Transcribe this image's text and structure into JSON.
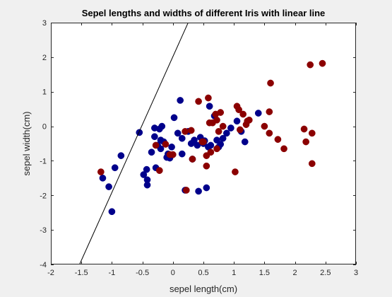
{
  "chart_data": {
    "type": "scatter",
    "title": "Sepel lengths and widths of different Iris with linear line",
    "xlabel": "sepel length(cm)",
    "ylabel": "sepel width(cm)",
    "xlim": [
      -2,
      3
    ],
    "ylim": [
      -4,
      3
    ],
    "xticks": [
      -2,
      -1.5,
      -1,
      -0.5,
      0,
      0.5,
      1,
      1.5,
      2,
      2.5,
      3
    ],
    "yticks": [
      -4,
      -3,
      -2,
      -1,
      0,
      1,
      2,
      3
    ],
    "xtick_labels": [
      "-2",
      "-1.5",
      "-1",
      "-0.5",
      "0",
      "0.5",
      "1",
      "1.5",
      "2",
      "2.5",
      "3"
    ],
    "ytick_labels": [
      "-4",
      "-3",
      "-2",
      "-1",
      "0",
      "1",
      "2",
      "3"
    ],
    "grid": false,
    "line": {
      "points": [
        [
          -1.53,
          -4.0
        ],
        [
          0.25,
          3.0
        ]
      ],
      "color": "#000000"
    },
    "series": [
      {
        "color": "#00008b",
        "points": [
          [
            -1.15,
            -1.5
          ],
          [
            -1.05,
            -1.75
          ],
          [
            -1.0,
            -2.47
          ],
          [
            -0.95,
            -1.2
          ],
          [
            -0.85,
            -0.85
          ],
          [
            -0.55,
            -0.18
          ],
          [
            -0.48,
            -1.4
          ],
          [
            -0.43,
            -1.25
          ],
          [
            -0.42,
            -1.55
          ],
          [
            -0.42,
            -1.7
          ],
          [
            -0.35,
            -0.75
          ],
          [
            -0.3,
            -0.3
          ],
          [
            -0.3,
            -0.05
          ],
          [
            -0.28,
            -1.2
          ],
          [
            -0.25,
            -0.55
          ],
          [
            -0.22,
            -0.08
          ],
          [
            -0.2,
            -0.65
          ],
          [
            -0.2,
            -0.4
          ],
          [
            -0.18,
            0.0
          ],
          [
            -0.15,
            -0.45
          ],
          [
            -0.1,
            -0.9
          ],
          [
            -0.08,
            -0.8
          ],
          [
            -0.05,
            -0.92
          ],
          [
            -0.02,
            -0.6
          ],
          [
            0.02,
            0.25
          ],
          [
            0.08,
            -0.2
          ],
          [
            0.12,
            0.75
          ],
          [
            0.15,
            -0.35
          ],
          [
            0.15,
            -0.8
          ],
          [
            0.2,
            -1.85
          ],
          [
            0.25,
            -0.15
          ],
          [
            0.3,
            -0.5
          ],
          [
            0.32,
            -0.95
          ],
          [
            0.35,
            -0.4
          ],
          [
            0.4,
            -0.55
          ],
          [
            0.42,
            -1.88
          ],
          [
            0.45,
            -0.32
          ],
          [
            0.5,
            -0.5
          ],
          [
            0.52,
            -0.42
          ],
          [
            0.55,
            -1.78
          ],
          [
            0.58,
            -0.6
          ],
          [
            0.6,
            0.58
          ],
          [
            0.62,
            -0.55
          ],
          [
            0.68,
            0.3
          ],
          [
            0.72,
            -0.4
          ],
          [
            0.75,
            -0.6
          ],
          [
            0.78,
            -0.52
          ],
          [
            0.82,
            -0.35
          ],
          [
            0.88,
            -0.2
          ],
          [
            0.95,
            -0.05
          ],
          [
            1.05,
            0.15
          ],
          [
            1.12,
            -0.15
          ],
          [
            1.18,
            -0.45
          ],
          [
            1.4,
            0.38
          ]
        ]
      },
      {
        "color": "#8b0000",
        "points": [
          [
            -1.18,
            -1.32
          ],
          [
            -0.28,
            -0.55
          ],
          [
            -0.22,
            -1.28
          ],
          [
            -0.12,
            -0.52
          ],
          [
            -0.05,
            -0.82
          ],
          [
            0.0,
            -0.82
          ],
          [
            0.2,
            -0.15
          ],
          [
            0.22,
            -1.85
          ],
          [
            0.3,
            -0.12
          ],
          [
            0.32,
            -0.95
          ],
          [
            0.42,
            0.72
          ],
          [
            0.48,
            -0.45
          ],
          [
            0.5,
            -0.45
          ],
          [
            0.55,
            -0.85
          ],
          [
            0.55,
            -1.15
          ],
          [
            0.58,
            0.82
          ],
          [
            0.6,
            0.1
          ],
          [
            0.62,
            -0.75
          ],
          [
            0.65,
            0.1
          ],
          [
            0.7,
            0.35
          ],
          [
            0.72,
            0.18
          ],
          [
            0.72,
            -0.65
          ],
          [
            0.75,
            -0.15
          ],
          [
            0.78,
            0.4
          ],
          [
            0.82,
            0.0
          ],
          [
            1.02,
            -1.32
          ],
          [
            1.05,
            0.58
          ],
          [
            1.08,
            0.48
          ],
          [
            1.1,
            -0.1
          ],
          [
            1.15,
            0.35
          ],
          [
            1.2,
            0.05
          ],
          [
            1.22,
            0.15
          ],
          [
            1.25,
            0.18
          ],
          [
            1.5,
            0.0
          ],
          [
            1.58,
            0.42
          ],
          [
            1.58,
            -0.2
          ],
          [
            1.6,
            1.25
          ],
          [
            1.72,
            -0.38
          ],
          [
            1.82,
            -0.65
          ],
          [
            2.15,
            -0.08
          ],
          [
            2.18,
            -0.45
          ],
          [
            2.25,
            1.78
          ],
          [
            2.28,
            -0.2
          ],
          [
            2.28,
            -1.08
          ],
          [
            2.45,
            1.82
          ]
        ]
      }
    ]
  }
}
